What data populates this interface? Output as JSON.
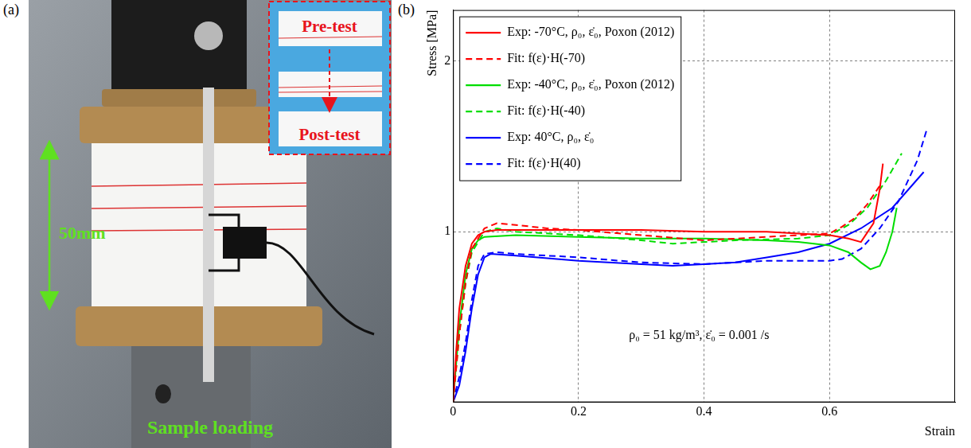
{
  "photo": {
    "label": "(a)",
    "inset_labels": [
      "Pre-test",
      "Post-test"
    ],
    "dimension_label": "50mm",
    "caption": "Sample loading"
  },
  "chart_data": {
    "type": "line",
    "label": "(b)",
    "x_label": "Strain",
    "y_label": "Stress [MPa]",
    "annotation": "ρ₀ = 51 kg/m³, ε̇₀ = 0.001 /s",
    "xlim": [
      0,
      0.8
    ],
    "xticks": [
      0,
      0.2,
      0.4,
      0.6
    ],
    "ylim": [
      0,
      2.3
    ],
    "yticks": [
      1,
      2
    ],
    "grid": true,
    "legend": "upper left",
    "series": [
      {
        "name": "Exp: -70°C, ρ₀, ε̇₀, Poxon (2012)",
        "color": "#ff0000",
        "line_style": "solid",
        "x": [
          0,
          0.005,
          0.01,
          0.02,
          0.03,
          0.04,
          0.05,
          0.07,
          0.1,
          0.15,
          0.2,
          0.3,
          0.4,
          0.5,
          0.55,
          0.6,
          0.63,
          0.65,
          0.67,
          0.68,
          0.685
        ],
        "values": [
          0,
          0.3,
          0.55,
          0.8,
          0.93,
          0.98,
          1.0,
          1.01,
          1.01,
          1.01,
          1.01,
          1.01,
          1.0,
          1.0,
          0.99,
          0.98,
          0.96,
          0.94,
          1.05,
          1.25,
          1.4
        ]
      },
      {
        "name": "Fit: f(ε)·H(-70)",
        "color": "#ff0000",
        "line_style": "dashed",
        "x": [
          0,
          0.01,
          0.02,
          0.03,
          0.05,
          0.07,
          0.1,
          0.15,
          0.2,
          0.3,
          0.4,
          0.5,
          0.6,
          0.62,
          0.64,
          0.66,
          0.68
        ],
        "values": [
          0,
          0.4,
          0.7,
          0.9,
          1.02,
          1.05,
          1.04,
          1.02,
          1.01,
          0.98,
          0.95,
          0.97,
          0.99,
          1.03,
          1.08,
          1.16,
          1.27
        ]
      },
      {
        "name": "Exp: -40°C, ρ₀, ε̇₀, Poxon (2012)",
        "color": "#00dd00",
        "line_style": "solid",
        "x": [
          0,
          0.01,
          0.02,
          0.03,
          0.04,
          0.05,
          0.1,
          0.2,
          0.3,
          0.4,
          0.5,
          0.55,
          0.6,
          0.63,
          0.65,
          0.665,
          0.68,
          0.69,
          0.7,
          0.707
        ],
        "values": [
          0,
          0.45,
          0.75,
          0.9,
          0.95,
          0.97,
          0.98,
          0.97,
          0.96,
          0.96,
          0.95,
          0.94,
          0.92,
          0.88,
          0.82,
          0.78,
          0.8,
          0.88,
          1.0,
          1.14
        ]
      },
      {
        "name": "Fit: f(ε)·H(-40)",
        "color": "#00dd00",
        "line_style": "dashed",
        "x": [
          0,
          0.01,
          0.02,
          0.03,
          0.05,
          0.07,
          0.1,
          0.2,
          0.3,
          0.35,
          0.45,
          0.55,
          0.6,
          0.63,
          0.66,
          0.69,
          0.715
        ],
        "values": [
          0,
          0.4,
          0.7,
          0.88,
          1.0,
          1.02,
          1.0,
          0.98,
          0.95,
          0.93,
          0.95,
          0.96,
          0.98,
          1.04,
          1.14,
          1.3,
          1.46
        ]
      },
      {
        "name": "Exp: 40°C, ρ₀, ε̇₀",
        "color": "#0000ff",
        "line_style": "solid",
        "x": [
          0,
          0.01,
          0.02,
          0.03,
          0.04,
          0.05,
          0.06,
          0.1,
          0.2,
          0.3,
          0.35,
          0.4,
          0.45,
          0.5,
          0.55,
          0.6,
          0.65,
          0.7,
          0.75
        ],
        "values": [
          0,
          0.1,
          0.3,
          0.55,
          0.75,
          0.85,
          0.87,
          0.86,
          0.83,
          0.81,
          0.8,
          0.81,
          0.82,
          0.85,
          0.88,
          0.93,
          1.02,
          1.14,
          1.35
        ]
      },
      {
        "name": "Fit: f(ε)·H(40)",
        "color": "#0000ff",
        "line_style": "dashed",
        "x": [
          0,
          0.01,
          0.02,
          0.03,
          0.04,
          0.05,
          0.07,
          0.1,
          0.2,
          0.3,
          0.4,
          0.5,
          0.6,
          0.62,
          0.65,
          0.68,
          0.71,
          0.74,
          0.755
        ],
        "values": [
          0,
          0.15,
          0.35,
          0.6,
          0.8,
          0.87,
          0.88,
          0.87,
          0.85,
          0.82,
          0.81,
          0.83,
          0.83,
          0.84,
          0.9,
          1.02,
          1.18,
          1.42,
          1.6
        ]
      }
    ]
  }
}
